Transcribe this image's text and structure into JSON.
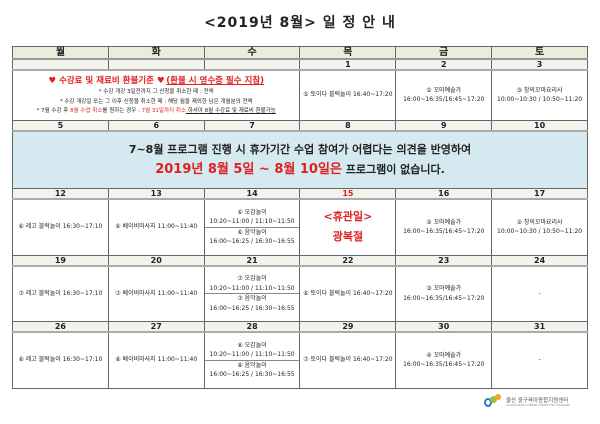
{
  "title": "<2019년 8월> 일 정 안 내",
  "weekdays": [
    "월",
    "화",
    "수",
    "목",
    "금",
    "토"
  ],
  "week1": {
    "dates": [
      "",
      "",
      "",
      "1",
      "2",
      "3"
    ],
    "notice": {
      "heading": "♥ 수강료 및 재료비 환불기준 ♥",
      "heading_note": "(환불 시 영수증 필수 지참)",
      "line1": "* 수강 개강 3일전까지 그 신청을 취소한 때 : 전액",
      "line2": "* 수강 개강일 또는 그 이후 신청을 취소한 때 : 해당 월을 제외한 남은 개월분의 전액",
      "line3_a": "* 7월 수강 후 ",
      "line3_b": "8월 수업 취소",
      "line3_c": "를 원하는 경우 : ",
      "line3_d": "7월 31일까지 취소",
      "line3_e": " 하셔야 8월 수강료 및 재료비 환불가능"
    },
    "thu": "⑤ 토이다 블럭놀이 16:40~17:20",
    "fri": {
      "name": "⑤ 꼬마예술가",
      "time": "16:00~16:35/16:45~17:20"
    },
    "sat": {
      "name": "③ 창의꼬마요리사",
      "time": "10:00~10:30 / 10:50~11:20"
    }
  },
  "week2": {
    "dates": [
      "5",
      "6",
      "7",
      "8",
      "9",
      "10"
    ],
    "line1": "7~8월 프로그램 진행 시 휴가기간 수업 참여가 어렵다는 의견을 반영하여",
    "line2_red": "2019년 8월 5일 ~ 8월 10일은",
    "line2_black": " 프로그램이 없습니다."
  },
  "week3": {
    "dates": [
      "12",
      "13",
      "14",
      "15",
      "16",
      "17"
    ],
    "mon": "⑥ 레고 블럭놀이 16:30~17:10",
    "tue": "⑥ 베이비마사지 11:00~11:40",
    "wed1": {
      "name": "⑥ 오감놀이",
      "time": "10:20~11:00 / 11:10~11:50"
    },
    "wed2": {
      "name": "⑥ 음악놀이",
      "time": "16:00~16:25 / 16:30~16:55"
    },
    "thu1": "<휴관일>",
    "thu2": "광복절",
    "fri": {
      "name": "② 꼬마예술가",
      "time": "16:00~16:35/16:45~17:20"
    },
    "sat": {
      "name": "② 창의꼬마요리사",
      "time": "10:00~10:30 / 10:50~11:20"
    }
  },
  "week4": {
    "dates": [
      "19",
      "20",
      "21",
      "22",
      "23",
      "24"
    ],
    "mon": "⑦ 레고 블럭놀이 16:30~17:10",
    "tue": "⑦ 베이비마사지 11:00~11:40",
    "wed1": {
      "name": "⑦ 오감놀이",
      "time": "10:20~11:00 / 11:10~11:50"
    },
    "wed2": {
      "name": "⑦ 음악놀이",
      "time": "16:00~16:25 / 16:30~16:55"
    },
    "thu": "⑥ 토이다 블럭놀이 16:40~17:20",
    "fri": {
      "name": "③ 꼬마예술가",
      "time": "16:00~16:35/16:45~17:20"
    },
    "sat": "-"
  },
  "week5": {
    "dates": [
      "26",
      "27",
      "28",
      "29",
      "30",
      "31"
    ],
    "mon": "⑧ 레고 블럭놀이 16:30~17:10",
    "tue": "⑧ 베이비마사지 11:00~11:40",
    "wed1": {
      "name": "⑧ 오감놀이",
      "time": "10:20~11:00 / 11:10~11:50"
    },
    "wed2": {
      "name": "⑧ 음악놀이",
      "time": "16:00~16:25 / 16:30~16:55"
    },
    "thu": "⑦ 토이다 블럭놀이 16:40~17:20",
    "fri": {
      "name": "④ 꼬마예술가",
      "time": "16:00~16:35/16:45~17:20"
    },
    "sat": "-"
  },
  "logo": {
    "name": "울산 중구육아종합지원센터",
    "sub": "ULSAN JUNGGU SUPPORT CENTER FOR CHILDCARE"
  }
}
